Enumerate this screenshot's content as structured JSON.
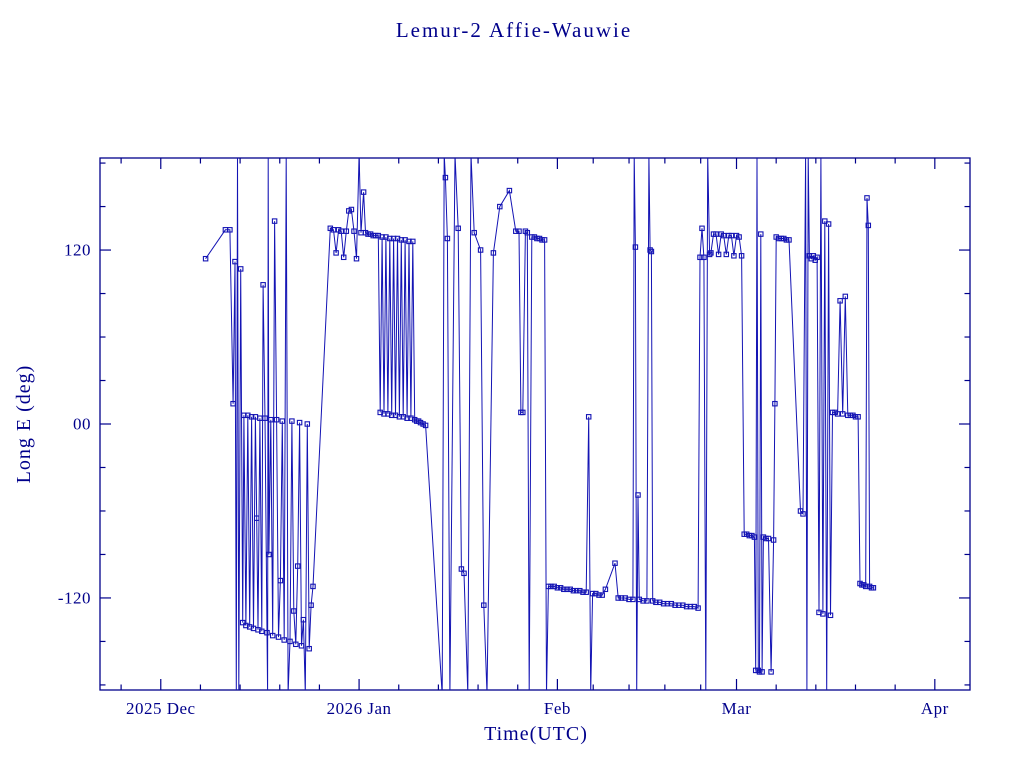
{
  "title": "Lemur-2 Affie-Wauwie",
  "colors": {
    "ink": "#00008b",
    "data": "#1414b4",
    "background": "#ffffff"
  },
  "chart_data": {
    "type": "line",
    "title": "Lemur-2 Affie-Wauwie",
    "xlabel": "Time(UTC)",
    "ylabel": "Long E (deg)",
    "marker": "open-square",
    "grid": false,
    "legend": "none",
    "x_unit": "days since 2025-12-01",
    "xlim": [
      -9.5,
      126.5
    ],
    "ylim": [
      -183.5,
      183.5
    ],
    "x_ticks": [
      {
        "day": 0,
        "label": "2025 Dec"
      },
      {
        "day": 31,
        "label": "2026 Jan"
      },
      {
        "day": 62,
        "label": "Feb"
      },
      {
        "day": 90,
        "label": "Mar"
      },
      {
        "day": 121,
        "label": "Apr"
      }
    ],
    "y_ticks": [
      {
        "value": 120,
        "label": "120"
      },
      {
        "value": 0,
        "label": "00"
      },
      {
        "value": -120,
        "label": "-120"
      }
    ],
    "y_minor_step": 30,
    "x_minor_divisions": 5,
    "points": [
      [
        7.0,
        114
      ],
      [
        10.1,
        134
      ],
      [
        10.8,
        134
      ],
      [
        11.3,
        14
      ],
      [
        11.6,
        112
      ],
      [
        11.8,
        -186
      ],
      [
        12.0,
        186
      ],
      [
        12.2,
        -186
      ],
      [
        12.5,
        107
      ],
      [
        12.8,
        -137
      ],
      [
        13.0,
        6
      ],
      [
        13.3,
        -139
      ],
      [
        13.6,
        6
      ],
      [
        13.9,
        -140
      ],
      [
        14.2,
        5
      ],
      [
        14.5,
        -141
      ],
      [
        14.8,
        5
      ],
      [
        15.0,
        -65
      ],
      [
        15.2,
        -142
      ],
      [
        15.5,
        4
      ],
      [
        15.8,
        -143
      ],
      [
        16.0,
        96
      ],
      [
        16.3,
        4
      ],
      [
        16.6,
        -144
      ],
      [
        16.7,
        -186
      ],
      [
        16.8,
        186
      ],
      [
        16.9,
        -90
      ],
      [
        17.2,
        3
      ],
      [
        17.5,
        -146
      ],
      [
        17.8,
        140
      ],
      [
        18.1,
        3
      ],
      [
        18.4,
        -147
      ],
      [
        18.7,
        -108
      ],
      [
        19.0,
        2
      ],
      [
        19.3,
        -149
      ],
      [
        19.6,
        186
      ],
      [
        19.9,
        -186
      ],
      [
        20.2,
        -150
      ],
      [
        20.5,
        2
      ],
      [
        20.8,
        -129
      ],
      [
        21.1,
        -152
      ],
      [
        21.4,
        -98
      ],
      [
        21.7,
        1
      ],
      [
        22.0,
        -153
      ],
      [
        22.3,
        -135
      ],
      [
        22.6,
        -186
      ],
      [
        22.9,
        0
      ],
      [
        23.2,
        -155
      ],
      [
        23.5,
        -125
      ],
      [
        23.8,
        -112
      ],
      [
        26.5,
        135
      ],
      [
        27.0,
        134
      ],
      [
        27.4,
        118
      ],
      [
        27.8,
        134
      ],
      [
        28.2,
        133
      ],
      [
        28.6,
        115
      ],
      [
        29.0,
        133
      ],
      [
        29.4,
        147
      ],
      [
        29.8,
        148
      ],
      [
        30.2,
        133
      ],
      [
        30.6,
        114
      ],
      [
        31.0,
        186
      ],
      [
        31.3,
        132
      ],
      [
        31.7,
        160
      ],
      [
        32.0,
        132
      ],
      [
        32.4,
        131
      ],
      [
        32.8,
        131
      ],
      [
        33.2,
        130
      ],
      [
        33.6,
        130
      ],
      [
        34.0,
        130
      ],
      [
        34.3,
        8
      ],
      [
        34.6,
        129
      ],
      [
        34.9,
        7
      ],
      [
        35.2,
        129
      ],
      [
        35.5,
        7
      ],
      [
        35.8,
        128
      ],
      [
        36.1,
        6
      ],
      [
        36.4,
        128
      ],
      [
        36.7,
        6
      ],
      [
        37.0,
        128
      ],
      [
        37.3,
        5
      ],
      [
        37.6,
        127
      ],
      [
        37.9,
        5
      ],
      [
        38.2,
        127
      ],
      [
        38.5,
        4
      ],
      [
        38.8,
        126
      ],
      [
        39.1,
        4
      ],
      [
        39.4,
        126
      ],
      [
        39.7,
        3
      ],
      [
        40.0,
        2
      ],
      [
        40.3,
        2
      ],
      [
        40.6,
        1
      ],
      [
        41.0,
        0
      ],
      [
        41.4,
        -1
      ],
      [
        44.0,
        -187
      ],
      [
        44.3,
        186
      ],
      [
        44.5,
        170
      ],
      [
        44.8,
        128
      ],
      [
        45.2,
        -187
      ],
      [
        46.0,
        186
      ],
      [
        46.5,
        135
      ],
      [
        47.0,
        -100
      ],
      [
        47.4,
        -103
      ],
      [
        48.0,
        -186
      ],
      [
        48.5,
        186
      ],
      [
        49.0,
        132
      ],
      [
        50.0,
        120
      ],
      [
        50.5,
        -125
      ],
      [
        51.0,
        -186
      ],
      [
        52.0,
        118
      ],
      [
        53.0,
        150
      ],
      [
        54.5,
        161
      ],
      [
        55.5,
        133
      ],
      [
        56.0,
        133
      ],
      [
        56.3,
        8
      ],
      [
        56.6,
        8
      ],
      [
        57.0,
        133
      ],
      [
        57.3,
        132
      ],
      [
        57.6,
        -186
      ],
      [
        58.0,
        129
      ],
      [
        58.4,
        129
      ],
      [
        58.8,
        128
      ],
      [
        59.2,
        128
      ],
      [
        59.6,
        127
      ],
      [
        60.0,
        127
      ],
      [
        60.3,
        -186
      ],
      [
        60.6,
        -112
      ],
      [
        61.0,
        -112
      ],
      [
        61.5,
        -112
      ],
      [
        62.0,
        -113
      ],
      [
        62.5,
        -113
      ],
      [
        63.0,
        -114
      ],
      [
        63.5,
        -114
      ],
      [
        64.0,
        -114
      ],
      [
        64.5,
        -115
      ],
      [
        65.0,
        -115
      ],
      [
        65.5,
        -115
      ],
      [
        66.0,
        -116
      ],
      [
        66.5,
        -116
      ],
      [
        66.9,
        5
      ],
      [
        67.2,
        -186
      ],
      [
        67.5,
        -117
      ],
      [
        68.0,
        -117
      ],
      [
        68.5,
        -118
      ],
      [
        69.0,
        -118
      ],
      [
        69.5,
        -114
      ],
      [
        71.0,
        -96
      ],
      [
        71.5,
        -120
      ],
      [
        72.0,
        -120
      ],
      [
        72.6,
        -120
      ],
      [
        73.2,
        -121
      ],
      [
        73.8,
        -121
      ],
      [
        74.0,
        186
      ],
      [
        74.2,
        122
      ],
      [
        74.4,
        -186
      ],
      [
        74.6,
        -49
      ],
      [
        74.8,
        -121
      ],
      [
        75.4,
        -122
      ],
      [
        76.0,
        -122
      ],
      [
        76.3,
        186
      ],
      [
        76.5,
        120
      ],
      [
        76.7,
        119
      ],
      [
        76.9,
        -122
      ],
      [
        77.4,
        -123
      ],
      [
        78.0,
        -123
      ],
      [
        78.6,
        -124
      ],
      [
        79.2,
        -124
      ],
      [
        79.8,
        -124
      ],
      [
        80.4,
        -125
      ],
      [
        81.0,
        -125
      ],
      [
        81.6,
        -125
      ],
      [
        82.2,
        -126
      ],
      [
        82.8,
        -126
      ],
      [
        83.4,
        -126
      ],
      [
        84.0,
        -127
      ],
      [
        84.3,
        115
      ],
      [
        84.6,
        135
      ],
      [
        84.9,
        115
      ],
      [
        85.2,
        -186
      ],
      [
        85.5,
        186
      ],
      [
        85.8,
        117
      ],
      [
        86.0,
        118
      ],
      [
        86.4,
        131
      ],
      [
        86.8,
        131
      ],
      [
        87.2,
        117
      ],
      [
        87.6,
        131
      ],
      [
        88.0,
        130
      ],
      [
        88.4,
        117
      ],
      [
        88.8,
        130
      ],
      [
        89.2,
        130
      ],
      [
        89.6,
        116
      ],
      [
        90.0,
        130
      ],
      [
        90.4,
        129
      ],
      [
        90.8,
        116
      ],
      [
        91.2,
        -76
      ],
      [
        91.6,
        -76
      ],
      [
        92.0,
        -77
      ],
      [
        92.4,
        -77
      ],
      [
        92.8,
        -78
      ],
      [
        93.0,
        -170
      ],
      [
        93.2,
        186
      ],
      [
        93.4,
        -170
      ],
      [
        93.6,
        -171
      ],
      [
        93.8,
        131
      ],
      [
        94.0,
        -171
      ],
      [
        94.2,
        -78
      ],
      [
        94.6,
        -79
      ],
      [
        95.0,
        -79
      ],
      [
        95.4,
        -171
      ],
      [
        95.8,
        -80
      ],
      [
        96.0,
        14
      ],
      [
        96.2,
        129
      ],
      [
        96.6,
        128
      ],
      [
        97.0,
        128
      ],
      [
        97.4,
        128
      ],
      [
        97.8,
        127
      ],
      [
        98.2,
        127
      ],
      [
        100.0,
        -60
      ],
      [
        100.4,
        -62
      ],
      [
        100.8,
        186
      ],
      [
        101.0,
        -186
      ],
      [
        101.2,
        186
      ],
      [
        101.4,
        116
      ],
      [
        101.7,
        114
      ],
      [
        102.0,
        116
      ],
      [
        102.3,
        113
      ],
      [
        102.6,
        115
      ],
      [
        102.9,
        -130
      ],
      [
        103.2,
        186
      ],
      [
        103.5,
        -131
      ],
      [
        103.8,
        140
      ],
      [
        104.1,
        -186
      ],
      [
        104.4,
        138
      ],
      [
        104.7,
        -132
      ],
      [
        105.0,
        8
      ],
      [
        105.4,
        8
      ],
      [
        105.8,
        7
      ],
      [
        106.2,
        85
      ],
      [
        106.6,
        7
      ],
      [
        107.0,
        88
      ],
      [
        107.4,
        6
      ],
      [
        107.8,
        6
      ],
      [
        108.2,
        6
      ],
      [
        108.6,
        5
      ],
      [
        109.0,
        5
      ],
      [
        109.3,
        -110
      ],
      [
        109.6,
        -111
      ],
      [
        109.9,
        -111
      ],
      [
        110.2,
        -112
      ],
      [
        110.4,
        156
      ],
      [
        110.6,
        137
      ],
      [
        110.8,
        -112
      ],
      [
        111.1,
        -113
      ],
      [
        111.4,
        -113
      ]
    ]
  }
}
